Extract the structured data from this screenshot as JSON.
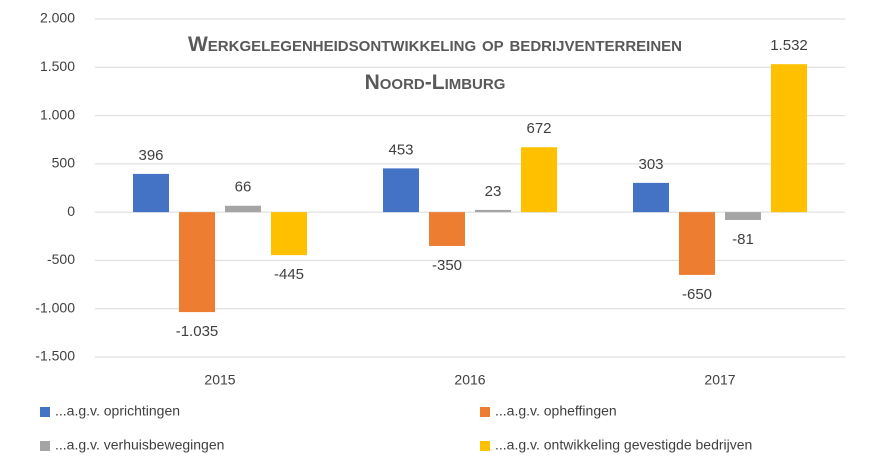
{
  "chart_data": {
    "type": "bar",
    "title": "Werkgelegenheidsontwikkeling op bedrijventerreinen Noord-Limburg",
    "categories": [
      "2015",
      "2016",
      "2017"
    ],
    "series": [
      {
        "name": "...a.g.v. oprichtingen",
        "color": "#4472c4",
        "values": [
          396,
          453,
          303
        ],
        "value_labels": [
          "396",
          "453",
          "303"
        ]
      },
      {
        "name": "...a.g.v. opheffingen",
        "color": "#ed7d31",
        "values": [
          -1035,
          -350,
          -650
        ],
        "value_labels": [
          "-1.035",
          "-350",
          "-650"
        ]
      },
      {
        "name": "...a.g.v. verhuisbewegingen",
        "color": "#a5a5a5",
        "values": [
          66,
          23,
          -81
        ],
        "value_labels": [
          "66",
          "23",
          "-81"
        ]
      },
      {
        "name": "...a.g.v. ontwikkeling gevestigde bedrijven",
        "color": "#ffc000",
        "values": [
          -445,
          672,
          1532
        ],
        "value_labels": [
          "-445",
          "672",
          "1.532"
        ]
      }
    ],
    "ylim": [
      -1500,
      2000
    ],
    "yticks": [
      {
        "value": -1500,
        "label": "-1.500"
      },
      {
        "value": -1000,
        "label": "-1.000"
      },
      -500,
      0,
      500,
      {
        "value": 1000,
        "label": "1.000"
      },
      {
        "value": 1500,
        "label": "1.500"
      },
      {
        "value": 2000,
        "label": "2.000"
      }
    ],
    "grid": true,
    "legend": "bottom"
  }
}
